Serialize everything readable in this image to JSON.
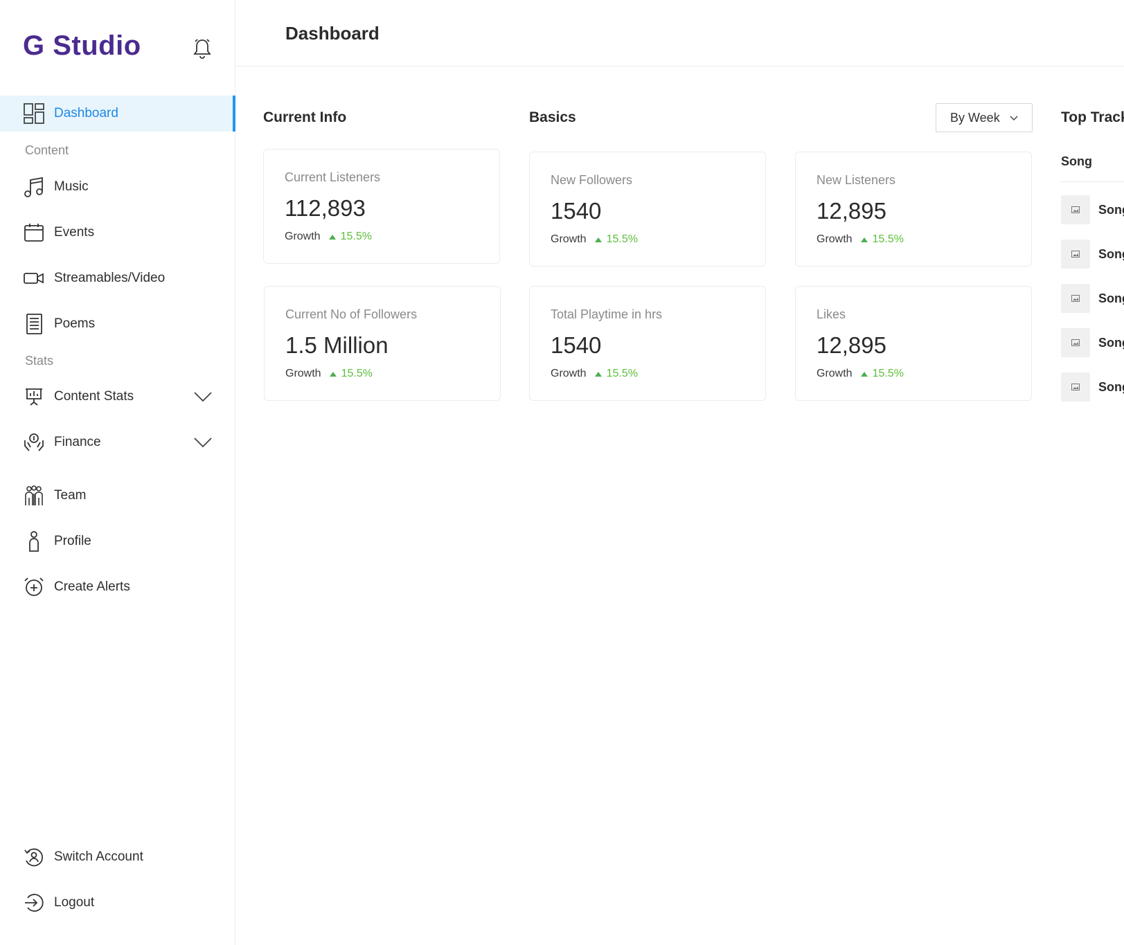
{
  "brand": {
    "name": "G Studio"
  },
  "header": {
    "title": "Dashboard"
  },
  "sidebar": {
    "dashboard": "Dashboard",
    "section_content": "Content",
    "music": "Music",
    "events": "Events",
    "streamables": "Streamables/Video",
    "poems": "Poems",
    "section_stats": "Stats",
    "content_stats": "Content Stats",
    "finance": "Finance",
    "team": "Team",
    "profile": "Profile",
    "create_alerts": "Create Alerts",
    "switch_account": "Switch Account",
    "logout": "Logout"
  },
  "main": {
    "current_info_title": "Current Info",
    "basics_title": "Basics",
    "period_select": "By Week",
    "top_tracks_title": "Top Tracks",
    "cards": [
      {
        "label": "Current Listeners",
        "value": "112,893",
        "growth_label": "Growth",
        "growth": "15.5%"
      },
      {
        "label": "New Followers",
        "value": "1540",
        "growth_label": "Growth",
        "growth": "15.5%"
      },
      {
        "label": "New Listeners",
        "value": "12,895",
        "growth_label": "Growth",
        "growth": "15.5%"
      },
      {
        "label": "Current No of Followers",
        "value": "1.5 Million",
        "growth_label": "Growth",
        "growth": "15.5%"
      },
      {
        "label": "Total Playtime in hrs",
        "value": "1540",
        "growth_label": "Growth",
        "growth": "15.5%"
      },
      {
        "label": "Likes",
        "value": "12,895",
        "growth_label": "Growth",
        "growth": "15.5%"
      }
    ],
    "top_tracks": {
      "column": "Song",
      "rows": [
        "Song",
        "Song",
        "Song",
        "Song",
        "Song"
      ]
    }
  },
  "colors": {
    "brand": "#4b2b8f",
    "active_bg": "#e8f5fd",
    "active_accent": "#2196f3",
    "growth": "#5cbf3a"
  },
  "icons": [
    "bell-icon",
    "dashboard-icon",
    "music-note-icon",
    "calendar-icon",
    "video-camera-icon",
    "document-icon",
    "presentation-icon",
    "finance-icon",
    "team-icon",
    "person-icon",
    "alarm-add-icon",
    "switch-account-icon",
    "logout-icon",
    "chevron-down-icon",
    "image-icon"
  ]
}
